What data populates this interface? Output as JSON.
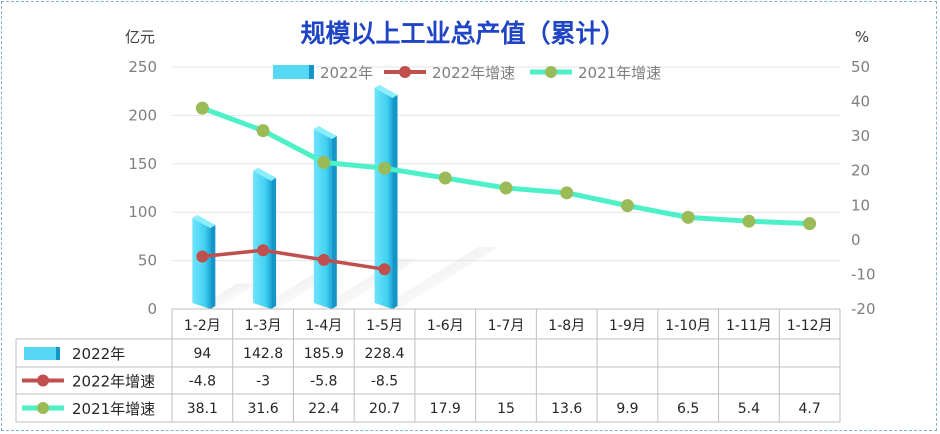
{
  "chart_data": {
    "type": "bar",
    "title": "规模以上工业总产值（累计）",
    "ylabel_left": "亿元",
    "ylabel_right": "%",
    "ylim_left": [
      0,
      250
    ],
    "ylim_right": [
      -20,
      50
    ],
    "yticks_left": [
      "0",
      "50",
      "100",
      "150",
      "200",
      "250"
    ],
    "yticks_right": [
      "-20",
      "-10",
      "0",
      "10",
      "20",
      "30",
      "40",
      "50"
    ],
    "categories": [
      "1-2月",
      "1-3月",
      "1-4月",
      "1-5月",
      "1-6月",
      "1-7月",
      "1-8月",
      "1-9月",
      "1-10月",
      "1-11月",
      "1-12月"
    ],
    "series": [
      {
        "name": "2022年",
        "kind": "bar",
        "color": "#56d8f4",
        "values": [
          94,
          142.8,
          185.9,
          228.4,
          null,
          null,
          null,
          null,
          null,
          null,
          null
        ]
      },
      {
        "name": "2022年增速",
        "kind": "line",
        "color": "#c0504d",
        "values": [
          -4.8,
          -3,
          -5.8,
          -8.5,
          null,
          null,
          null,
          null,
          null,
          null,
          null
        ]
      },
      {
        "name": "2021年增速",
        "kind": "line",
        "color": "#4ef0c8",
        "marker_color": "#9bbb59",
        "values": [
          38.1,
          31.6,
          22.4,
          20.7,
          17.9,
          15,
          13.6,
          9.9,
          6.5,
          5.4,
          4.7
        ]
      }
    ],
    "table_cells": [
      [
        "94",
        "142.8",
        "185.9",
        "228.4",
        "",
        "",
        "",
        "",
        "",
        "",
        ""
      ],
      [
        "-4.8",
        "-3",
        "-5.8",
        "-8.5",
        "",
        "",
        "",
        "",
        "",
        "",
        ""
      ],
      [
        "38.1",
        "31.6",
        "22.4",
        "20.7",
        "17.9",
        "15",
        "13.6",
        "9.9",
        "6.5",
        "5.4",
        "4.7"
      ]
    ],
    "legend_position": "top",
    "grid": true
  }
}
